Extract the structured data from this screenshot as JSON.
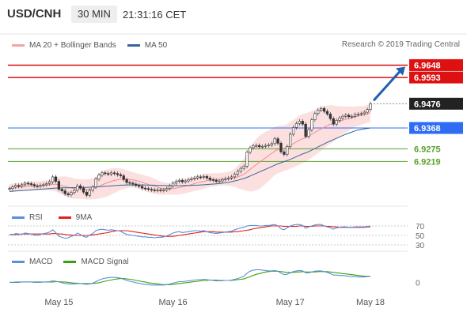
{
  "header": {
    "pair": "USD/CNH",
    "timeframe": "30 MIN",
    "time": "21:31:16 CET"
  },
  "legend": {
    "main": [
      {
        "label": "MA 20 + Bollinger Bands",
        "color": "#f4a3a3"
      },
      {
        "label": "MA 50",
        "color": "#336699"
      }
    ],
    "rsi": [
      {
        "label": "RSI",
        "color": "#5b8fd6"
      },
      {
        "label": "9MA",
        "color": "#e02020"
      }
    ],
    "macd": [
      {
        "label": "MACD",
        "color": "#5b8fd6"
      },
      {
        "label": "MACD Signal",
        "color": "#3aa010"
      }
    ]
  },
  "copyright": "Research © 2019 Trading Central",
  "colors": {
    "resistance": "#dd1111",
    "support": "#5aa02c",
    "pivot": "#2f6cf5",
    "last": "#222222",
    "arrow": "#2060b0"
  },
  "chart_data": [
    {
      "type": "candlestick",
      "x_labels": [
        "May 15",
        "May 16",
        "May 17",
        "May 18"
      ],
      "levels": [
        {
          "value": 6.9648,
          "label": "6.9648",
          "kind": "resistance"
        },
        {
          "value": 6.9593,
          "label": "6.9593",
          "kind": "resistance"
        },
        {
          "value": 6.9476,
          "label": "6.9476",
          "kind": "last"
        },
        {
          "value": 6.9368,
          "label": "6.9368",
          "kind": "pivot"
        },
        {
          "value": 6.9275,
          "label": "6.9275",
          "kind": "support"
        },
        {
          "value": 6.9219,
          "label": "6.9219",
          "kind": "support"
        }
      ],
      "ylim": [
        6.903,
        6.972
      ],
      "close": [
        6.9098,
        6.9105,
        6.9112,
        6.9108,
        6.9115,
        6.9122,
        6.912,
        6.9116,
        6.911,
        6.9108,
        6.9112,
        6.9115,
        6.912,
        6.9128,
        6.915,
        6.913,
        6.9095,
        6.9088,
        6.9075,
        6.907,
        6.908,
        6.909,
        6.911,
        6.91,
        6.9082,
        6.9068,
        6.909,
        6.9105,
        6.914,
        6.9158,
        6.9168,
        6.9165,
        6.9162,
        6.9168,
        6.9165,
        6.916,
        6.9155,
        6.9138,
        6.9125,
        6.9122,
        6.9118,
        6.9112,
        6.9108,
        6.91,
        6.9098,
        6.9095,
        6.9092,
        6.909,
        6.9092,
        6.909,
        6.9092,
        6.9098,
        6.911,
        6.9122,
        6.913,
        6.9135,
        6.9128,
        6.9132,
        6.9138,
        6.9142,
        6.9145,
        6.915,
        6.9148,
        6.9152,
        6.9145,
        6.9138,
        6.9135,
        6.913,
        6.9132,
        6.9138,
        6.9142,
        6.9145,
        6.915,
        6.9162,
        6.9175,
        6.9188,
        6.9198,
        6.926,
        6.928,
        6.9288,
        6.929,
        6.9284,
        6.9286,
        6.929,
        6.9292,
        6.9298,
        6.932,
        6.93,
        6.9262,
        6.925,
        6.9285,
        6.934,
        6.937,
        6.9388,
        6.9398,
        6.9385,
        6.933,
        6.936,
        6.9405,
        6.9432,
        6.9448,
        6.9455,
        6.9442,
        6.943,
        6.941,
        6.9385,
        6.9402,
        6.9412,
        6.942,
        6.9425,
        6.9418,
        6.942,
        6.9428,
        6.943,
        6.9432,
        6.9438,
        6.945,
        6.9476
      ],
      "ma20": [
        6.91,
        6.9102,
        6.9104,
        6.9105,
        6.9106,
        6.9108,
        6.9109,
        6.911,
        6.911,
        6.911,
        6.9111,
        6.9112,
        6.9113,
        6.9115,
        6.9117,
        6.9117,
        6.9115,
        6.9112,
        6.9108,
        6.9104,
        6.91,
        6.9098,
        6.9097,
        6.9096,
        6.9095,
        6.9094,
        6.9095,
        6.9097,
        6.9102,
        6.9108,
        6.9114,
        6.912,
        6.9125,
        6.913,
        6.9134,
        6.9137,
        6.914,
        6.914,
        6.914,
        6.9139,
        6.9137,
        6.9134,
        6.913,
        6.9126,
        6.9121,
        6.9117,
        6.9112,
        6.9108,
        6.9104,
        6.91,
        6.9098,
        6.9097,
        6.9097,
        6.9098,
        6.91,
        6.9103,
        6.9106,
        6.9109,
        6.9112,
        6.9116,
        6.912,
        6.9124,
        6.9127,
        6.913,
        6.9133,
        6.9135,
        6.9137,
        6.9138,
        6.9139,
        6.914,
        6.9141,
        6.9142,
        6.9143,
        6.9146,
        6.915,
        6.9155,
        6.9162,
        6.9172,
        6.9183,
        6.9194,
        6.9205,
        6.9215,
        6.9225,
        6.9235,
        6.9245,
        6.9255,
        6.9265,
        6.9272,
        6.9275,
        6.9278,
        6.9283,
        6.929,
        6.9298,
        6.9306,
        6.9314,
        6.932,
        6.9325,
        6.9332,
        6.934,
        6.9348,
        6.9356,
        6.9364,
        6.9371,
        6.9378,
        6.9384,
        6.9388,
        6.9392,
        6.9397,
        6.9402,
        6.9406,
        6.941,
        6.9414,
        6.9418,
        6.9421,
        6.9424,
        6.9427,
        6.9431,
        6.9436
      ],
      "ma50": [
        6.9085,
        6.9086,
        6.9087,
        6.9088,
        6.9089,
        6.909,
        6.9091,
        6.9092,
        6.9093,
        6.9094,
        6.9095,
        6.9096,
        6.9097,
        6.9098,
        6.9099,
        6.91,
        6.91,
        6.9101,
        6.9101,
        6.9101,
        6.9102,
        6.9102,
        6.9102,
        6.9103,
        6.9103,
        6.9103,
        6.9104,
        6.9104,
        6.9105,
        6.9106,
        6.9107,
        6.9108,
        6.9109,
        6.911,
        6.9111,
        6.9112,
        6.9113,
        6.9113,
        6.9114,
        6.9114,
        6.9114,
        6.9114,
        6.9114,
        6.9114,
        6.9114,
        6.9113,
        6.9113,
        6.9113,
        6.9112,
        6.9112,
        6.9112,
        6.9111,
        6.9111,
        6.9111,
        6.9111,
        6.9111,
        6.9111,
        6.9112,
        6.9112,
        6.9112,
        6.9113,
        6.9113,
        6.9114,
        6.9115,
        6.9116,
        6.9117,
        6.9118,
        6.9119,
        6.912,
        6.9122,
        6.9124,
        6.9126,
        6.9129,
        6.9132,
        6.9135,
        6.9139,
        6.9143,
        6.9148,
        6.9154,
        6.916,
        6.9166,
        6.9172,
        6.9178,
        6.9184,
        6.919,
        6.9196,
        6.9202,
        6.9208,
        6.9213,
        6.9218,
        6.9223,
        6.9228,
        6.9234,
        6.924,
        6.9246,
        6.9252,
        6.9257,
        6.9263,
        6.9269,
        6.9276,
        6.9283,
        6.929,
        6.9297,
        6.9304,
        6.931,
        6.9316,
        6.9322,
        6.9328,
        6.9334,
        6.934,
        6.9345,
        6.935,
        6.9355,
        6.9359,
        6.9362,
        6.9364,
        6.9366,
        6.9368
      ],
      "bb_width": [
        0.0018,
        0.0018,
        0.0018,
        0.0018,
        0.0019,
        0.0019,
        0.0019,
        0.002,
        0.002,
        0.002,
        0.002,
        0.0021,
        0.0022,
        0.0024,
        0.003,
        0.0032,
        0.0036,
        0.004,
        0.0044,
        0.0046,
        0.0046,
        0.0045,
        0.0044,
        0.0044,
        0.0044,
        0.0045,
        0.0046,
        0.0047,
        0.005,
        0.0055,
        0.0058,
        0.006,
        0.006,
        0.0058,
        0.0056,
        0.0052,
        0.0048,
        0.0044,
        0.004,
        0.0036,
        0.0034,
        0.0033,
        0.0033,
        0.0034,
        0.0035,
        0.0036,
        0.0035,
        0.0034,
        0.0032,
        0.003,
        0.0028,
        0.0026,
        0.0026,
        0.0027,
        0.0029,
        0.0031,
        0.0032,
        0.0032,
        0.0032,
        0.0032,
        0.0033,
        0.0034,
        0.0034,
        0.0033,
        0.0032,
        0.0031,
        0.003,
        0.0029,
        0.0028,
        0.0028,
        0.0029,
        0.0031,
        0.0034,
        0.004,
        0.005,
        0.006,
        0.007,
        0.0085,
        0.0098,
        0.0108,
        0.0115,
        0.0118,
        0.0118,
        0.0116,
        0.0113,
        0.011,
        0.0108,
        0.0106,
        0.0104,
        0.0102,
        0.0102,
        0.0104,
        0.0106,
        0.0108,
        0.011,
        0.011,
        0.0108,
        0.0106,
        0.0104,
        0.0102,
        0.01,
        0.0098,
        0.0094,
        0.009,
        0.0086,
        0.008,
        0.0074,
        0.0068,
        0.0062,
        0.0058,
        0.0054,
        0.005,
        0.0046,
        0.0044,
        0.0042,
        0.004,
        0.004,
        0.0042
      ]
    },
    {
      "type": "line",
      "name_panel": "RSI",
      "yticks": [
        {
          "value": 70,
          "label": "70"
        },
        {
          "value": 50,
          "label": "50"
        },
        {
          "value": 30,
          "label": "30"
        }
      ],
      "ylim": [
        20,
        80
      ],
      "series": [
        {
          "name": "RSI",
          "values": [
            52,
            51,
            54,
            53,
            52,
            55,
            54,
            53,
            51,
            50,
            52,
            54,
            55,
            57,
            62,
            56,
            48,
            46,
            44,
            45,
            48,
            50,
            55,
            52,
            48,
            46,
            51,
            54,
            60,
            62,
            63,
            62,
            61,
            62,
            61,
            60,
            59,
            55,
            52,
            51,
            50,
            49,
            48,
            47,
            47,
            46,
            46,
            45,
            46,
            46,
            47,
            49,
            52,
            55,
            57,
            58,
            56,
            57,
            58,
            59,
            60,
            60,
            59,
            60,
            58,
            56,
            55,
            54,
            55,
            56,
            57,
            58,
            59,
            62,
            64,
            66,
            67,
            70,
            71,
            71,
            71,
            70,
            70,
            71,
            71,
            72,
            73,
            70,
            64,
            62,
            66,
            70,
            72,
            73,
            73,
            71,
            65,
            68,
            70,
            72,
            73,
            73,
            70,
            68,
            66,
            63,
            66,
            67,
            68,
            68,
            67,
            67,
            68,
            68,
            68,
            68,
            69,
            70
          ]
        },
        {
          "name": "9MA",
          "values": [
            52,
            52,
            52,
            52,
            53,
            53,
            53,
            53,
            53,
            53,
            53,
            53,
            53,
            53,
            54,
            54,
            53,
            53,
            52,
            51,
            51,
            50,
            50,
            50,
            50,
            50,
            50,
            51,
            52,
            53,
            54,
            55,
            56,
            58,
            59,
            60,
            60,
            60,
            60,
            59,
            58,
            57,
            56,
            55,
            54,
            53,
            52,
            51,
            50,
            49,
            48,
            48,
            48,
            48,
            49,
            50,
            51,
            52,
            53,
            54,
            55,
            56,
            57,
            58,
            58,
            58,
            58,
            57,
            57,
            57,
            57,
            57,
            57,
            58,
            58,
            59,
            60,
            61,
            62,
            64,
            65,
            66,
            67,
            68,
            69,
            70,
            70,
            70,
            70,
            69,
            69,
            69,
            69,
            69,
            70,
            70,
            69,
            69,
            69,
            70,
            70,
            70,
            70,
            69,
            69,
            68,
            68,
            67,
            67,
            67,
            67,
            67,
            67,
            67,
            67,
            67,
            68,
            68
          ]
        }
      ]
    },
    {
      "type": "line",
      "name_panel": "MACD",
      "yticks": [
        {
          "value": 0,
          "label": "0"
        }
      ],
      "ylim": [
        -0.003,
        0.004
      ],
      "series": [
        {
          "name": "MACD",
          "values": [
            0.0,
            0.0,
            0.0001,
            0.0001,
            0.0001,
            0.0001,
            0.0001,
            0.0001,
            0.0,
            0.0,
            0.0,
            0.0001,
            0.0001,
            0.0002,
            0.0004,
            0.0003,
            0.0001,
            -0.0001,
            -0.0003,
            -0.0004,
            -0.0004,
            -0.0004,
            -0.0003,
            -0.0003,
            -0.0004,
            -0.0005,
            -0.0004,
            -0.0002,
            0.0002,
            0.0006,
            0.0009,
            0.0011,
            0.0012,
            0.0013,
            0.0013,
            0.0012,
            0.0011,
            0.0008,
            0.0005,
            0.0003,
            0.0001,
            -0.0001,
            -0.0002,
            -0.0004,
            -0.0005,
            -0.0006,
            -0.0007,
            -0.0007,
            -0.0007,
            -0.0007,
            -0.0007,
            -0.0006,
            -0.0004,
            -0.0002,
            0.0,
            0.0002,
            0.0002,
            0.0003,
            0.0004,
            0.0005,
            0.0006,
            0.0007,
            0.0007,
            0.0008,
            0.0007,
            0.0006,
            0.0005,
            0.0004,
            0.0004,
            0.0004,
            0.0005,
            0.0005,
            0.0006,
            0.0008,
            0.001,
            0.0013,
            0.0016,
            0.0024,
            0.0029,
            0.0032,
            0.0033,
            0.0033,
            0.0032,
            0.0031,
            0.003,
            0.003,
            0.0031,
            0.0029,
            0.0024,
            0.002,
            0.0021,
            0.0025,
            0.0028,
            0.003,
            0.0031,
            0.003,
            0.0025,
            0.0025,
            0.0027,
            0.0029,
            0.003,
            0.003,
            0.0028,
            0.0026,
            0.0023,
            0.0019,
            0.0019,
            0.0018,
            0.0018,
            0.0017,
            0.0016,
            0.0015,
            0.0015,
            0.0014,
            0.0014,
            0.0014,
            0.0015,
            0.0016
          ]
        },
        {
          "name": "MACD Signal",
          "values": [
            0.0,
            0.0,
            0.0,
            0.0,
            0.0001,
            0.0001,
            0.0001,
            0.0001,
            0.0001,
            0.0001,
            0.0001,
            0.0001,
            0.0001,
            0.0001,
            0.0001,
            0.0002,
            0.0002,
            0.0001,
            0.0001,
            0.0,
            -0.0001,
            -0.0002,
            -0.0002,
            -0.0003,
            -0.0003,
            -0.0003,
            -0.0003,
            -0.0003,
            -0.0002,
            -0.0001,
            0.0001,
            0.0003,
            0.0005,
            0.0006,
            0.0008,
            0.0009,
            0.001,
            0.001,
            0.0009,
            0.0008,
            0.0007,
            0.0005,
            0.0004,
            0.0002,
            0.0001,
            -0.0001,
            -0.0002,
            -0.0003,
            -0.0004,
            -0.0005,
            -0.0006,
            -0.0006,
            -0.0006,
            -0.0005,
            -0.0004,
            -0.0003,
            -0.0002,
            -0.0001,
            0.0,
            0.0001,
            0.0002,
            0.0003,
            0.0004,
            0.0005,
            0.0005,
            0.0006,
            0.0006,
            0.0006,
            0.0005,
            0.0005,
            0.0005,
            0.0005,
            0.0005,
            0.0006,
            0.0007,
            0.0008,
            0.0009,
            0.0012,
            0.0015,
            0.0018,
            0.0021,
            0.0023,
            0.0025,
            0.0027,
            0.0028,
            0.0029,
            0.0029,
            0.0029,
            0.0028,
            0.0027,
            0.0026,
            0.0026,
            0.0026,
            0.0027,
            0.0027,
            0.0028,
            0.0027,
            0.0027,
            0.0027,
            0.0027,
            0.0028,
            0.0028,
            0.0028,
            0.0028,
            0.0027,
            0.0026,
            0.0025,
            0.0024,
            0.0023,
            0.0022,
            0.0021,
            0.002,
            0.0019,
            0.0018,
            0.0017,
            0.0016,
            0.0016,
            0.0016
          ]
        }
      ]
    }
  ]
}
